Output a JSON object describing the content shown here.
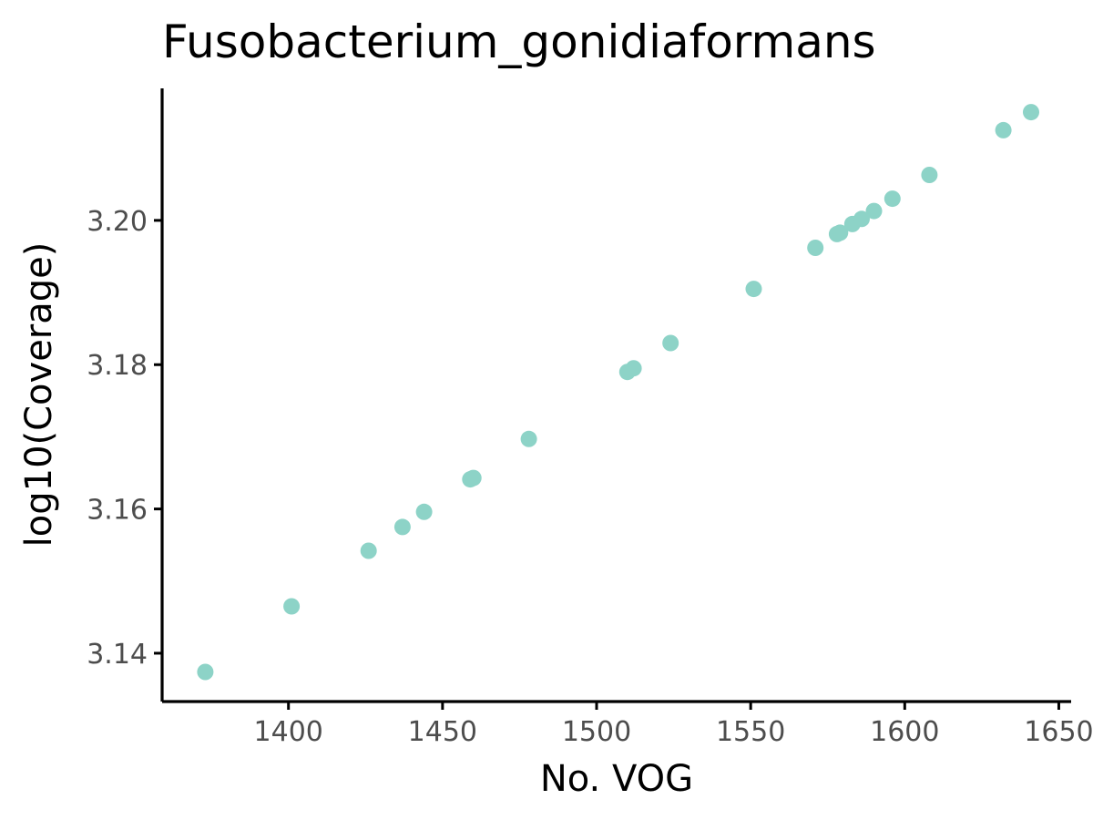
{
  "chart_data": {
    "type": "scatter",
    "title": "Fusobacterium_gonidiaformans",
    "xlabel": "No. VOG",
    "ylabel": "log10(Coverage)",
    "xlim": [
      1359,
      1654
    ],
    "ylim": [
      3.1333,
      3.2183
    ],
    "x_ticks": [
      1400,
      1450,
      1500,
      1550,
      1600,
      1650
    ],
    "x_tick_labels": [
      "1400",
      "1450",
      "1500",
      "1550",
      "1600",
      "1650"
    ],
    "y_ticks": [
      3.14,
      3.16,
      3.18,
      3.2
    ],
    "y_tick_labels": [
      "3.14",
      "3.16",
      "3.18",
      "3.20"
    ],
    "grid": false,
    "legend": "none",
    "point_color": "#8dd3c7",
    "points": [
      {
        "x": 1373,
        "y": 3.1374
      },
      {
        "x": 1401,
        "y": 3.1465
      },
      {
        "x": 1426,
        "y": 3.1542
      },
      {
        "x": 1437,
        "y": 3.1575
      },
      {
        "x": 1444,
        "y": 3.1596
      },
      {
        "x": 1459,
        "y": 3.1641
      },
      {
        "x": 1460,
        "y": 3.1643
      },
      {
        "x": 1478,
        "y": 3.1697
      },
      {
        "x": 1510,
        "y": 3.179
      },
      {
        "x": 1512,
        "y": 3.1795
      },
      {
        "x": 1524,
        "y": 3.183
      },
      {
        "x": 1551,
        "y": 3.1905
      },
      {
        "x": 1571,
        "y": 3.1962
      },
      {
        "x": 1578,
        "y": 3.1981
      },
      {
        "x": 1579,
        "y": 3.1983
      },
      {
        "x": 1583,
        "y": 3.1995
      },
      {
        "x": 1586,
        "y": 3.2002
      },
      {
        "x": 1590,
        "y": 3.2013
      },
      {
        "x": 1596,
        "y": 3.203
      },
      {
        "x": 1608,
        "y": 3.2063
      },
      {
        "x": 1632,
        "y": 3.2125
      },
      {
        "x": 1641,
        "y": 3.215
      }
    ]
  }
}
